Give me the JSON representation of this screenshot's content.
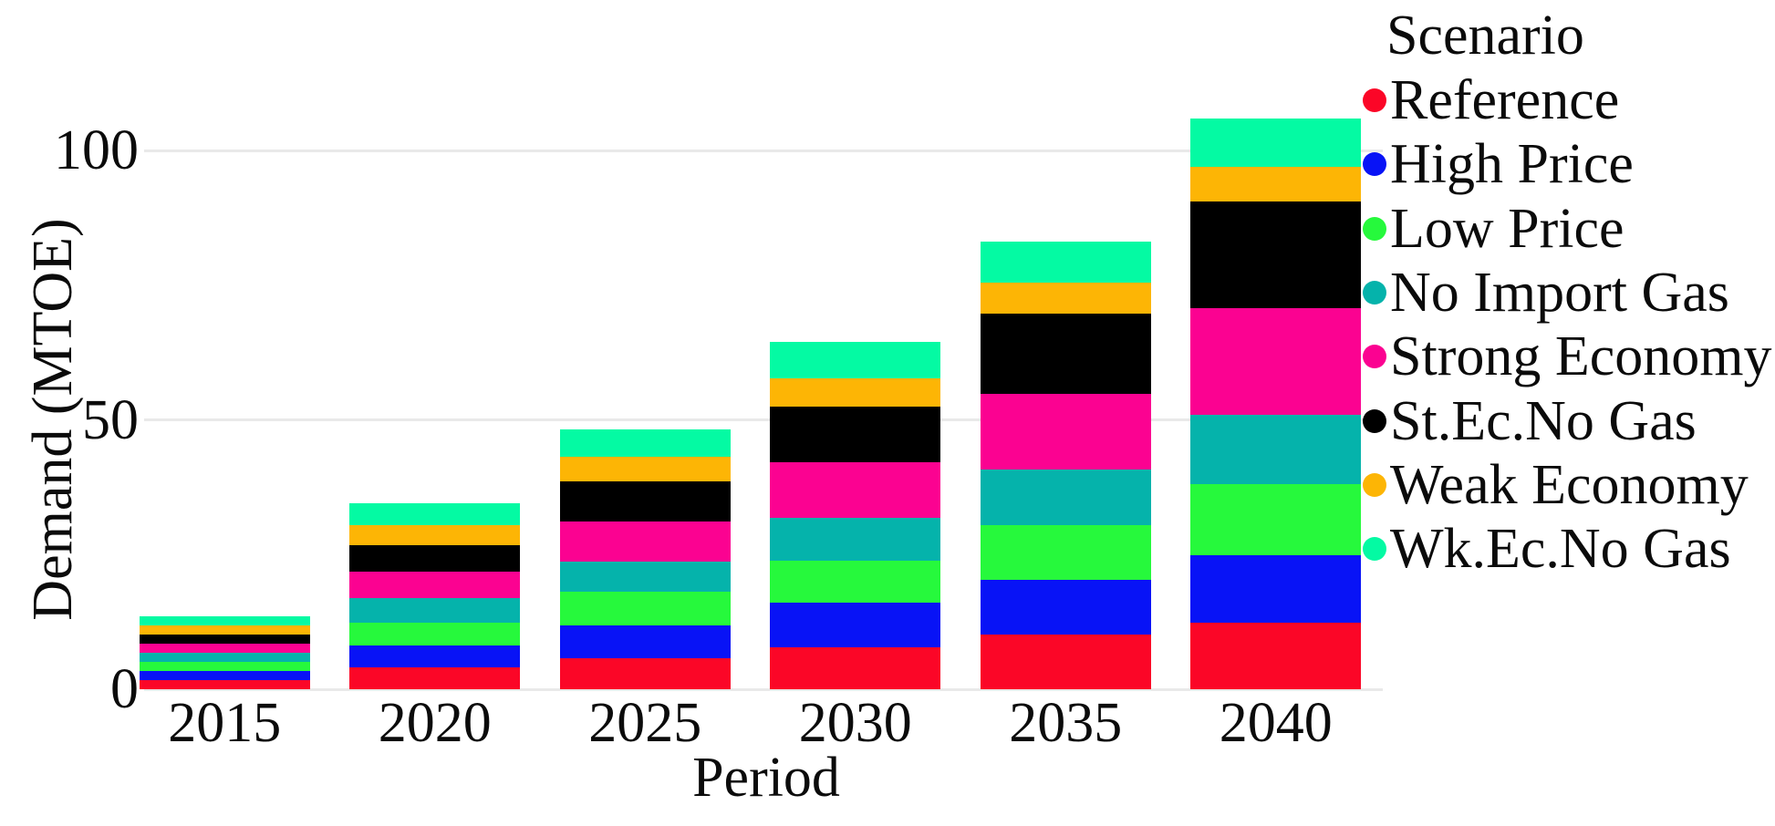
{
  "chart_data": {
    "type": "bar",
    "stacked": true,
    "categories": [
      "2015",
      "2020",
      "2025",
      "2030",
      "2035",
      "2040"
    ],
    "series": [
      {
        "name": "Reference",
        "color": "#fb0627",
        "values": [
          1.7,
          4.1,
          5.8,
          7.8,
          10.1,
          12.4
        ]
      },
      {
        "name": "High Price",
        "color": "#0813f6",
        "values": [
          1.7,
          4.0,
          6.1,
          8.2,
          10.2,
          12.5
        ]
      },
      {
        "name": "Low Price",
        "color": "#26f93c",
        "values": [
          1.7,
          4.3,
          6.2,
          7.9,
          10.2,
          13.2
        ]
      },
      {
        "name": "No Import Gas",
        "color": "#05b3ab",
        "values": [
          1.7,
          4.6,
          5.6,
          7.9,
          10.2,
          12.8
        ]
      },
      {
        "name": "Strong Economy",
        "color": "#fb0291",
        "values": [
          1.7,
          4.8,
          7.5,
          10.3,
          14.1,
          19.9
        ]
      },
      {
        "name": "St.Ec.No Gas",
        "color": "#000000",
        "values": [
          1.7,
          4.9,
          7.3,
          10.4,
          14.9,
          19.8
        ]
      },
      {
        "name": "Weak Economy",
        "color": "#fdb505",
        "values": [
          1.7,
          3.7,
          4.6,
          5.2,
          5.7,
          6.4
        ]
      },
      {
        "name": "Wk.Ec.No Gas",
        "color": "#04faa3",
        "values": [
          1.7,
          4.1,
          5.2,
          6.8,
          7.6,
          8.9
        ]
      }
    ],
    "stack_order": "bottom-to-top in listed series order",
    "title": "",
    "xlabel": "Period",
    "ylabel": "Demand (MTOE)",
    "y_ticks": [
      0,
      50,
      100
    ],
    "y_tick_labels": [
      "0",
      "50",
      "100"
    ],
    "ylim": [
      0,
      112
    ],
    "grid": "horizontal major gridlines only",
    "legend_title": "Scenario",
    "legend_position": "right"
  },
  "colors": {
    "background": "#ffffff",
    "gridline": "#e9e9e9",
    "text": "#0b0b0b"
  }
}
